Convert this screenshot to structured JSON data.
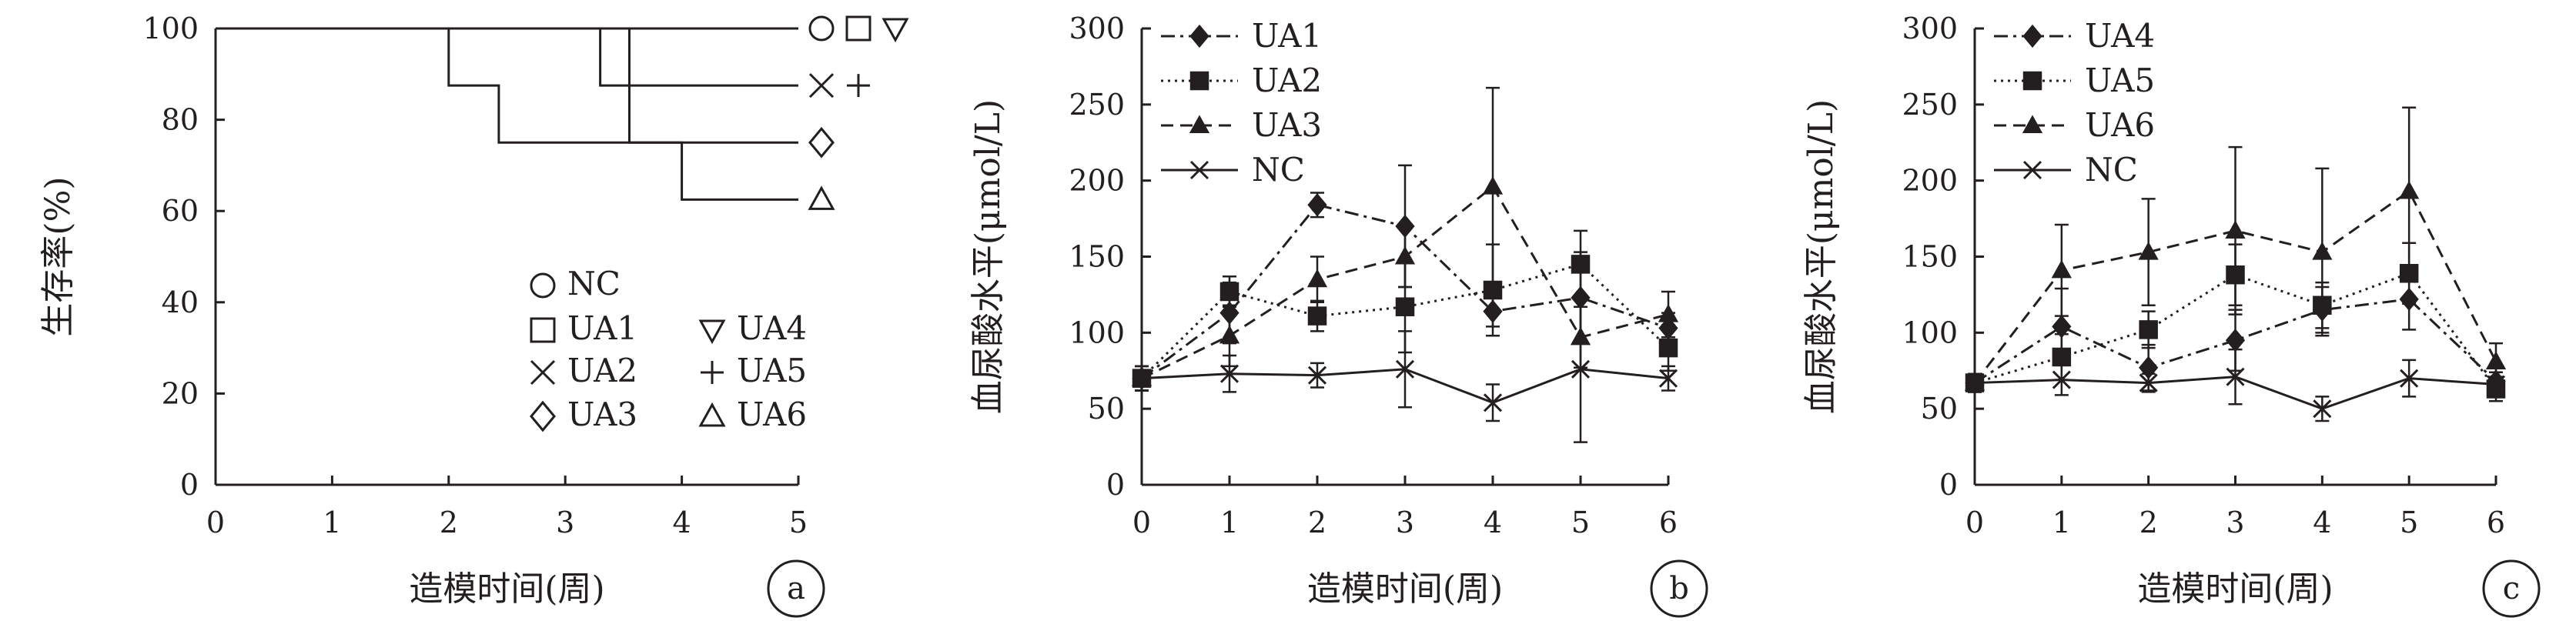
{
  "chart_data": [
    {
      "id": "a",
      "type": "line",
      "panel_label": "a",
      "xlabel": "造模时间(周)",
      "ylabel": "生存率(%)",
      "xlim": [
        0,
        5
      ],
      "ylim": [
        0,
        100
      ],
      "xticks": [
        "0",
        "1",
        "2",
        "3",
        "4",
        "5"
      ],
      "yticks": [
        "0",
        "20",
        "40",
        "60",
        "80",
        "100"
      ],
      "grid": false,
      "legend": "bottom-right",
      "legend_items": [
        {
          "symbol": "circle",
          "label": "NC"
        },
        {
          "symbol": "square",
          "label": "UA1"
        },
        {
          "symbol": "cross",
          "label": "UA2"
        },
        {
          "symbol": "diamond",
          "label": "UA3"
        },
        {
          "symbol": "triangle-down",
          "label": "UA4"
        },
        {
          "symbol": "plus",
          "label": "UA5"
        },
        {
          "symbol": "triangle",
          "label": "UA6"
        }
      ],
      "end_markers": [
        {
          "value": 100,
          "symbols": [
            "circle",
            "square",
            "triangle-down"
          ]
        },
        {
          "value": 87.5,
          "symbols": [
            "cross",
            "plus"
          ]
        },
        {
          "value": 75,
          "symbols": [
            "diamond"
          ]
        },
        {
          "value": 62.5,
          "symbols": [
            "triangle"
          ]
        }
      ],
      "curves": [
        {
          "steps": [
            [
              0,
              100
            ],
            [
              5,
              100
            ]
          ]
        },
        {
          "steps": [
            [
              0,
              100
            ],
            [
              3.3,
              100
            ],
            [
              3.3,
              87.5
            ],
            [
              5,
              87.5
            ]
          ]
        },
        {
          "steps": [
            [
              0,
              100
            ],
            [
              2,
              100
            ],
            [
              2,
              87.5
            ],
            [
              2.43,
              87.5
            ],
            [
              2.43,
              75
            ],
            [
              5,
              75
            ]
          ]
        },
        {
          "steps": [
            [
              0,
              100
            ],
            [
              3.55,
              100
            ],
            [
              3.55,
              75
            ],
            [
              4,
              75
            ],
            [
              4,
              62.5
            ],
            [
              5,
              62.5
            ]
          ]
        }
      ]
    },
    {
      "id": "b",
      "type": "line",
      "panel_label": "b",
      "xlabel": "造模时间(周)",
      "ylabel": "血尿酸水平(μmol/L)",
      "x": [
        0,
        1,
        2,
        3,
        4,
        5,
        6
      ],
      "xlim": [
        0,
        6
      ],
      "ylim": [
        0,
        300
      ],
      "xticks": [
        "0",
        "1",
        "2",
        "3",
        "4",
        "5",
        "6"
      ],
      "yticks": [
        "0",
        "50",
        "100",
        "150",
        "200",
        "250",
        "300"
      ],
      "grid": false,
      "legend": "top-left",
      "series": [
        {
          "name": "UA1",
          "marker": "diamond",
          "dash": "dashdot",
          "values": [
            70,
            113,
            184,
            170,
            114,
            123,
            103
          ],
          "errors": [
            8,
            20,
            8,
            40,
            10,
            30,
            10
          ]
        },
        {
          "name": "UA2",
          "marker": "square",
          "dash": "dotted",
          "values": [
            70,
            127,
            111,
            117,
            128,
            145,
            90
          ],
          "errors": [
            8,
            10,
            10,
            30,
            30,
            22,
            15
          ]
        },
        {
          "name": "UA3",
          "marker": "triangle",
          "dash": "dashed",
          "values": [
            70,
            98,
            135,
            150,
            196,
            97,
            112
          ],
          "errors": [
            8,
            20,
            15,
            20,
            65,
            20,
            15
          ]
        },
        {
          "name": "NC",
          "marker": "x",
          "dash": "solid",
          "values": [
            70,
            73,
            72,
            76,
            54,
            76,
            70
          ],
          "errors": [
            8,
            12,
            8,
            25,
            12,
            48,
            8
          ]
        }
      ]
    },
    {
      "id": "c",
      "type": "line",
      "panel_label": "c",
      "xlabel": "造模时间(周)",
      "ylabel": "血尿酸水平(μmol/L)",
      "x": [
        0,
        1,
        2,
        3,
        4,
        5,
        6
      ],
      "xlim": [
        0,
        6
      ],
      "ylim": [
        0,
        300
      ],
      "xticks": [
        "0",
        "1",
        "2",
        "3",
        "4",
        "5",
        "6"
      ],
      "yticks": [
        "0",
        "50",
        "100",
        "150",
        "200",
        "250",
        "300"
      ],
      "grid": false,
      "legend": "top-left",
      "series": [
        {
          "name": "UA4",
          "marker": "diamond",
          "dash": "dashdot",
          "values": [
            67,
            104,
            77,
            95,
            115,
            122,
            68
          ],
          "errors": [
            6,
            25,
            15,
            20,
            15,
            20,
            10
          ]
        },
        {
          "name": "UA5",
          "marker": "square",
          "dash": "dotted",
          "values": [
            67,
            84,
            102,
            138,
            118,
            139,
            63
          ],
          "errors": [
            6,
            15,
            12,
            20,
            15,
            20,
            8
          ]
        },
        {
          "name": "UA6",
          "marker": "triangle",
          "dash": "dashed",
          "values": [
            67,
            141,
            153,
            167,
            153,
            193,
            81
          ],
          "errors": [
            6,
            30,
            35,
            55,
            55,
            55,
            12
          ]
        },
        {
          "name": "NC",
          "marker": "x",
          "dash": "solid",
          "values": [
            67,
            69,
            67,
            71,
            50,
            70,
            66
          ],
          "errors": [
            6,
            10,
            6,
            18,
            8,
            12,
            8
          ]
        }
      ]
    }
  ]
}
